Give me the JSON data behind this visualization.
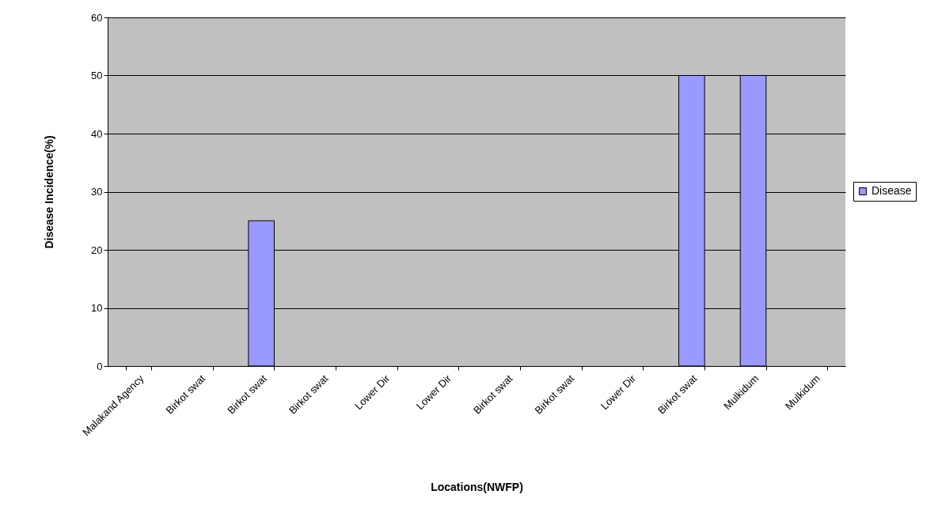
{
  "chart_data": {
    "type": "bar",
    "xlabel": "Locations(NWFP)",
    "ylabel": "Disease Incidence(%)",
    "categories": [
      "Malakand Agency",
      "Birkot swat",
      "Birkot swat",
      "Birkot swat",
      "Lower Dir",
      "Lower Dir",
      "Birkot swat",
      "Birkot swat",
      "Lower Dir",
      "Birkot swat",
      "Mulkidum",
      "Mulkidum"
    ],
    "series": [
      {
        "name": "Disease",
        "color": "#9999ff",
        "values": [
          0,
          0,
          25,
          0,
          0,
          0,
          0,
          0,
          0,
          50,
          50,
          0
        ]
      }
    ],
    "ylim": [
      0,
      60
    ],
    "yticks": [
      0,
      10,
      20,
      30,
      40,
      50,
      60
    ],
    "grid": "y",
    "legend": "right"
  }
}
